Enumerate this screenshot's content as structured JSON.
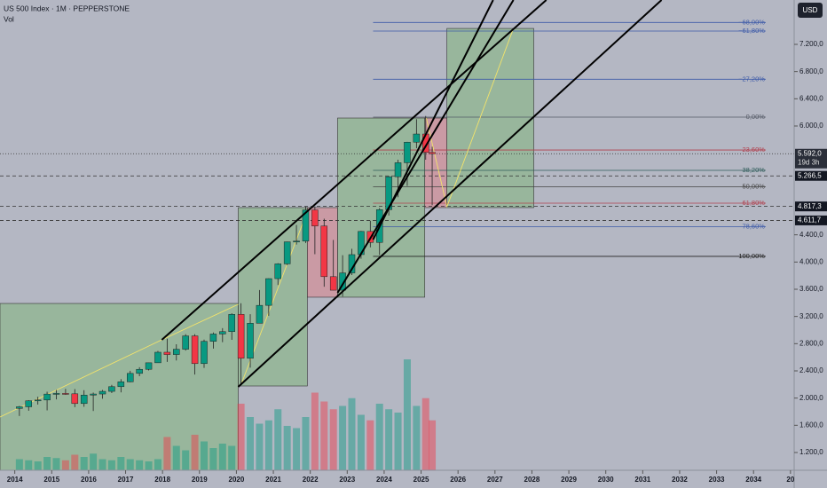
{
  "chart_data": {
    "type": "candlestick",
    "title": "US 500 Index · 1M · PEPPERSTONE",
    "subtitle": "Vol",
    "currency": "USD",
    "xlim": [
      2013.6,
      2035.1
    ],
    "ylim": [
      939,
      7852
    ],
    "vlim": [
      0,
      100
    ],
    "xticks": [
      2014,
      2015,
      2016,
      2017,
      2018,
      2019,
      2020,
      2021,
      2022,
      2023,
      2024,
      2025,
      2026,
      2027,
      2028,
      2029,
      2030,
      2031,
      2032,
      2033,
      2034,
      {
        "value": 2035,
        "label": "20"
      }
    ],
    "yticks": [
      {
        "value": 1200,
        "label": "1.200,0"
      },
      {
        "value": 1600,
        "label": "1.600,0"
      },
      {
        "value": 2000,
        "label": "2.000,0"
      },
      {
        "value": 2400,
        "label": "2.400,0"
      },
      {
        "value": 2800,
        "label": "2.800,0"
      },
      {
        "value": 3200,
        "label": "3.200,0"
      },
      {
        "value": 3600,
        "label": "3.600,0"
      },
      {
        "value": 4000,
        "label": "4.000,0"
      },
      {
        "value": 4400,
        "label": "4.400,0"
      },
      {
        "value": 6000,
        "label": "6.000,0"
      },
      {
        "value": 6400,
        "label": "6.400,0"
      },
      {
        "value": 6800,
        "label": "6.800,0"
      },
      {
        "value": 7200,
        "label": "7.200,0"
      }
    ],
    "up_color": "#089981",
    "down_color": "#f23645",
    "x": [
      2014.125,
      2014.375,
      2014.625,
      2014.875,
      2015.125,
      2015.375,
      2015.625,
      2015.875,
      2016.125,
      2016.375,
      2016.625,
      2016.875,
      2017.125,
      2017.375,
      2017.625,
      2017.875,
      2018.125,
      2018.375,
      2018.625,
      2018.875,
      2019.125,
      2019.375,
      2019.625,
      2019.875,
      2020.125,
      2020.375,
      2020.625,
      2020.875,
      2021.125,
      2021.375,
      2021.625,
      2021.875,
      2022.125,
      2022.375,
      2022.625,
      2022.875,
      2023.125,
      2023.375,
      2023.625,
      2023.875,
      2024.125,
      2024.375,
      2024.625,
      2024.875,
      2025.125,
      2025.3
    ],
    "open": [
      1848,
      1872,
      1960,
      1972,
      2059,
      2068,
      2063,
      1920,
      2044,
      2060,
      2099,
      2168,
      2239,
      2363,
      2423,
      2519,
      2674,
      2640,
      2718,
      2914,
      2507,
      2834,
      2942,
      2977,
      3231,
      2585,
      3100,
      3363,
      3756,
      3973,
      4297,
      4308,
      4766,
      4530,
      3785,
      3586,
      3840,
      4109,
      4450,
      4288,
      4770,
      5254,
      5460,
      5762,
      5882,
      5612
    ],
    "high": [
      1884,
      1968,
      2019,
      2093,
      2119,
      2135,
      2132,
      2116,
      2081,
      2120,
      2194,
      2278,
      2401,
      2454,
      2519,
      2694,
      2873,
      2791,
      2940,
      2940,
      2860,
      2964,
      3028,
      3247,
      3394,
      3233,
      3588,
      3760,
      3983,
      4300,
      4546,
      4818,
      4818,
      4637,
      4325,
      4101,
      4195,
      4458,
      4607,
      4793,
      5265,
      5505,
      5767,
      6100,
      6147,
      5695
    ],
    "low": [
      1737,
      1814,
      1905,
      1820,
      1981,
      2048,
      1867,
      1872,
      1810,
      1991,
      2074,
      2084,
      2233,
      2322,
      2406,
      2520,
      2532,
      2553,
      2698,
      2346,
      2444,
      2728,
      2822,
      2856,
      2192,
      2447,
      3101,
      3210,
      3662,
      3955,
      4257,
      4279,
      4115,
      3637,
      3584,
      3492,
      3808,
      4048,
      4216,
      4104,
      4683,
      4953,
      5120,
      5674,
      5504,
      4835
    ],
    "close": [
      1872,
      1960,
      1972,
      2059,
      2068,
      2063,
      1920,
      2044,
      2060,
      2099,
      2168,
      2239,
      2363,
      2423,
      2519,
      2674,
      2640,
      2718,
      2914,
      2507,
      2834,
      2942,
      2977,
      3231,
      2585,
      3100,
      3363,
      3756,
      3973,
      4297,
      4308,
      4766,
      4530,
      3785,
      3586,
      3840,
      4109,
      4450,
      4288,
      4770,
      5254,
      5460,
      5762,
      5882,
      5612,
      5592
    ],
    "volume": [
      10,
      9,
      8,
      12,
      11,
      9,
      14,
      12,
      15,
      10,
      9,
      12,
      10,
      9,
      8,
      10,
      30,
      22,
      18,
      32,
      26,
      20,
      24,
      22,
      60,
      48,
      42,
      45,
      55,
      40,
      38,
      48,
      70,
      62,
      55,
      58,
      65,
      50,
      45,
      60,
      55,
      52,
      100,
      58,
      65,
      45
    ],
    "boxes": [
      {
        "x": [
          2013.6,
          2020.05
        ],
        "y": [
          939,
          3391
        ],
        "color": "#8fb58f"
      },
      {
        "x": [
          2020.05,
          2021.92
        ],
        "y": [
          2178,
          4800
        ],
        "color": "#8fb58f"
      },
      {
        "x": [
          2021.92,
          2022.74
        ],
        "y": [
          3483,
          4800
        ],
        "color": "#d1909a"
      },
      {
        "x": [
          2022.74,
          2025.1
        ],
        "y": [
          3483,
          6117
        ],
        "color": "#8fb58f"
      },
      {
        "x": [
          2025.1,
          2025.7
        ],
        "y": [
          4800,
          6117
        ],
        "color": "#d1909a"
      },
      {
        "x": [
          2025.7,
          2028.05
        ],
        "y": [
          4800,
          7434
        ],
        "color": "#8fb58f"
      }
    ],
    "trendlines": [
      {
        "x": [
          2017.98,
          2028.39
        ],
        "y": [
          2856,
          7852
        ]
      },
      {
        "x": [
          2020.05,
          2031.51
        ],
        "y": [
          2165,
          7852
        ]
      },
      {
        "x": [
          2023.7,
          2026.95
        ],
        "y": [
          4330,
          7852
        ]
      },
      {
        "x": [
          2022.74,
          2027.5
        ],
        "y": [
          3548,
          7852
        ]
      }
    ],
    "guides": [
      {
        "x": [
          2013.6,
          2017.98,
          2020.05
        ],
        "y": [
          1722,
          2856,
          3378
        ]
      },
      {
        "x": [
          2020.14,
          2021.94
        ],
        "y": [
          2217,
          4774
        ]
      },
      {
        "x": [
          2025.14,
          2025.7,
          2027.5
        ],
        "y": [
          6117,
          4813,
          7434
        ]
      }
    ],
    "fib": {
      "x": [
        2023.7,
        2034.33
      ],
      "p0": 6130,
      "p100": 4083,
      "levels": [
        {
          "value": -68,
          "label": "−68,00%",
          "color": "#3d5aa8"
        },
        {
          "value": -61.8,
          "label": "−61,80%",
          "color": "#3d5aa8"
        },
        {
          "value": -27.2,
          "label": "−27,20%",
          "color": "#3d5aa8"
        },
        {
          "value": 0,
          "label": "0,00%",
          "color": "#555a66"
        },
        {
          "value": 23.6,
          "label": "23,60%",
          "color": "#b0404e"
        },
        {
          "value": 38.2,
          "label": "38,20%",
          "color": "#2f5c5a"
        },
        {
          "value": 50,
          "label": "50,00%",
          "color": "#444"
        },
        {
          "value": 61.8,
          "label": "61,80%",
          "color": "#b0404e"
        },
        {
          "value": 78.6,
          "label": "78,60%",
          "color": "#3d5aa8"
        },
        {
          "value": 100,
          "label": "100,00%",
          "color": "#222"
        }
      ]
    },
    "markers": [
      {
        "value": 5592,
        "label": "5.592,0",
        "sub": "19d 3h",
        "color": "#2a2e39",
        "line": "dotted"
      },
      {
        "value": 5266.5,
        "label": "5.266,5",
        "color": "#131722",
        "line": "dashed"
      },
      {
        "value": 4817.3,
        "label": "4.817,3",
        "color": "#131722",
        "line": "dashed"
      },
      {
        "value": 4611.7,
        "label": "4.611,7",
        "color": "#131722",
        "line": "dashed"
      }
    ]
  }
}
